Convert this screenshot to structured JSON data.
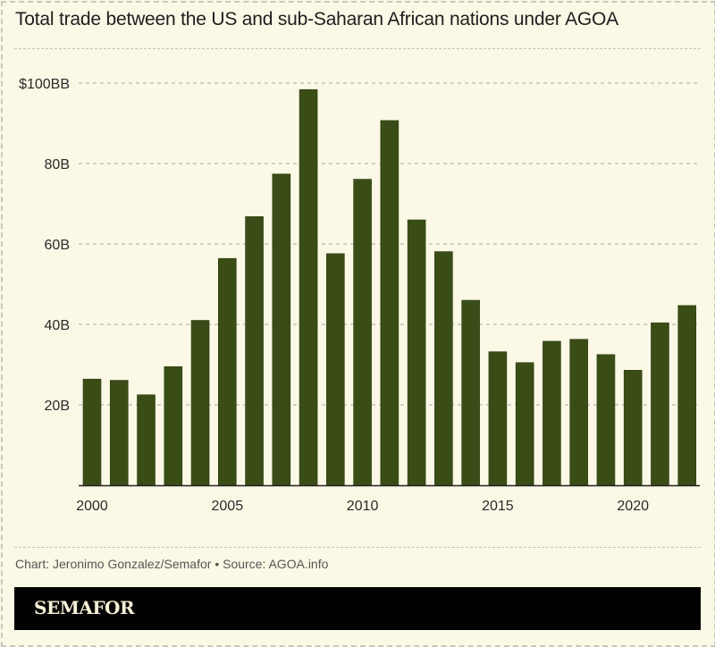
{
  "header": {
    "title": "Total trade between the US and sub-Saharan African nations under AGOA"
  },
  "footer": {
    "source": "Chart: Jeronimo Gonzalez/Semafor • Source: AGOA.info",
    "brand": "SEMAFOR"
  },
  "colors": {
    "background": "#fbf8e6",
    "bar": "#3a4d17",
    "grid": "#b9b7ad",
    "brand_bar": "#000000",
    "brand_text": "#f6f0d6"
  },
  "chart_data": {
    "type": "bar",
    "title": "Total trade between the US and sub-Saharan African nations under AGOA",
    "xlabel": "",
    "ylabel": "",
    "categories": [
      "2000",
      "2001",
      "2002",
      "2003",
      "2004",
      "2005",
      "2006",
      "2007",
      "2008",
      "2009",
      "2010",
      "2011",
      "2012",
      "2013",
      "2014",
      "2015",
      "2016",
      "2017",
      "2018",
      "2019",
      "2020",
      "2021",
      "2022"
    ],
    "values": [
      26.4,
      26.1,
      22.5,
      29.5,
      41.0,
      56.4,
      66.8,
      77.4,
      98.4,
      57.6,
      76.1,
      90.7,
      66.0,
      58.1,
      46.0,
      33.2,
      30.5,
      35.8,
      36.3,
      32.5,
      28.6,
      40.4,
      44.7
    ],
    "units": "billions USD",
    "ylim": [
      0,
      100
    ],
    "y_ticks": [
      {
        "value": 20,
        "label": "20B"
      },
      {
        "value": 40,
        "label": "40B"
      },
      {
        "value": 60,
        "label": "60B"
      },
      {
        "value": 80,
        "label": "80B"
      },
      {
        "value": 100,
        "label": "$100BB"
      }
    ],
    "x_ticks": [
      "2000",
      "2005",
      "2010",
      "2015",
      "2020"
    ],
    "grid": true,
    "legend": "none"
  }
}
